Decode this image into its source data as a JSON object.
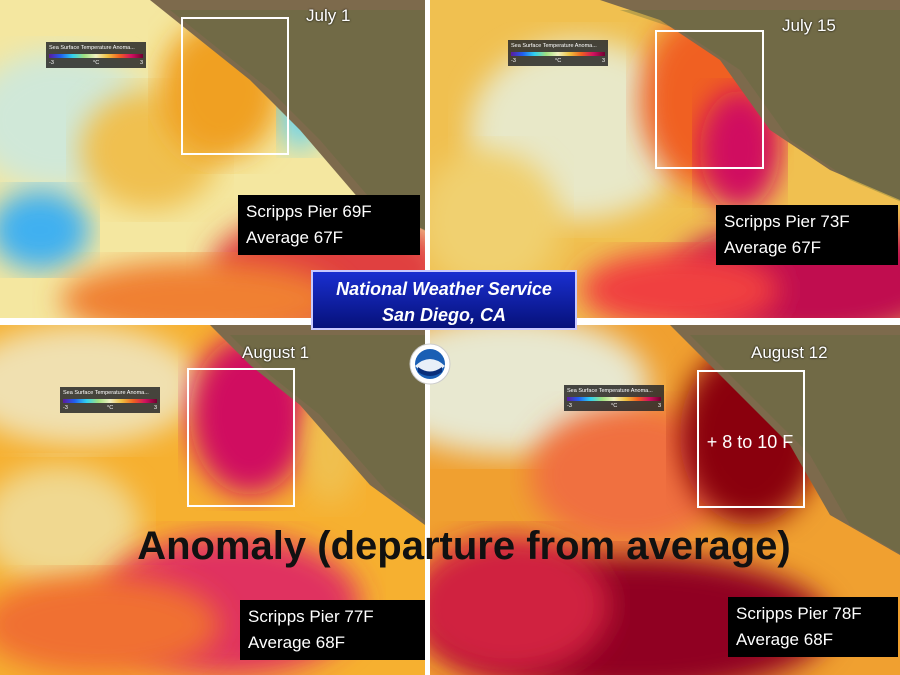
{
  "header": {
    "title_lines": [
      "National Weather Service",
      "San Diego, CA"
    ]
  },
  "caption": "Anomaly (departure from average)",
  "panels": [
    {
      "date": "July 1",
      "lines": [
        "Scripps Pier 69F",
        "Average 67F"
      ],
      "legend": {
        "title": "Sea Surface Temperature Anoma...",
        "min": "-3",
        "unit": "°C",
        "max": "3"
      }
    },
    {
      "date": "July 15",
      "lines": [
        "Scripps Pier 73F",
        "Average 67F"
      ],
      "legend": {
        "title": "Sea Surface Temperature Anoma...",
        "min": "-3",
        "unit": "°C",
        "max": "3"
      }
    },
    {
      "date": "August 1",
      "lines": [
        "Scripps Pier 77F",
        "Average 68F"
      ],
      "legend": {
        "title": "Sea Surface Temperature Anoma...",
        "min": "-3",
        "unit": "°C",
        "max": "3"
      }
    },
    {
      "date": "August 12",
      "lines": [
        "Scripps Pier 78F",
        "Average 68F"
      ],
      "legend": {
        "title": "Sea Surface Temperature Anoma...",
        "min": "-3",
        "unit": "°C",
        "max": "3"
      },
      "annotation": "+ 8 to 10 F"
    }
  ]
}
